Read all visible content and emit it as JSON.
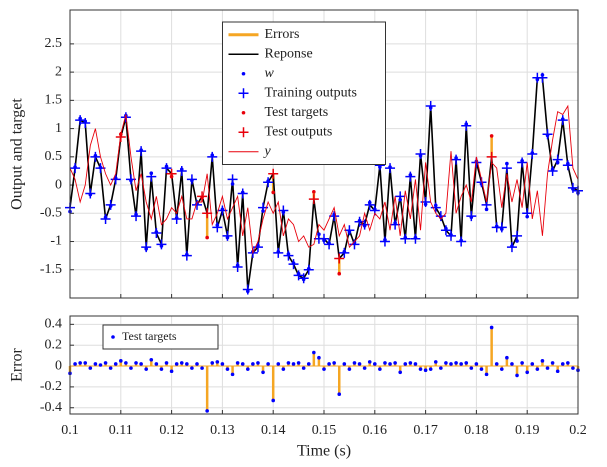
{
  "chart_data": [
    {
      "type": "line",
      "y_label": "Output and target",
      "legend": "upper center",
      "grid": true,
      "xtick_labels": false,
      "ylim": [
        -2,
        3.1
      ],
      "yticks": [
        -1.5,
        -1,
        -0.5,
        0,
        0.5,
        1,
        1.5,
        2,
        2.5
      ],
      "xlim": [
        0.1,
        0.2
      ],
      "xticks": [
        0.1,
        0.11,
        0.12,
        0.13,
        0.14,
        0.15,
        0.16,
        0.17,
        0.18,
        0.19,
        0.2
      ],
      "x": [
        0.1,
        0.101,
        0.102,
        0.103,
        0.104,
        0.105,
        0.106,
        0.107,
        0.108,
        0.109,
        0.11,
        0.111,
        0.112,
        0.113,
        0.114,
        0.115,
        0.116,
        0.117,
        0.118,
        0.119,
        0.12,
        0.121,
        0.122,
        0.123,
        0.124,
        0.125,
        0.126,
        0.127,
        0.128,
        0.129,
        0.13,
        0.131,
        0.132,
        0.133,
        0.134,
        0.135,
        0.136,
        0.137,
        0.138,
        0.139,
        0.14,
        0.141,
        0.142,
        0.143,
        0.144,
        0.145,
        0.146,
        0.147,
        0.148,
        0.149,
        0.15,
        0.151,
        0.152,
        0.153,
        0.154,
        0.155,
        0.156,
        0.157,
        0.158,
        0.159,
        0.16,
        0.161,
        0.162,
        0.163,
        0.164,
        0.165,
        0.166,
        0.167,
        0.168,
        0.169,
        0.17,
        0.171,
        0.172,
        0.173,
        0.174,
        0.175,
        0.176,
        0.177,
        0.178,
        0.179,
        0.18,
        0.181,
        0.182,
        0.183,
        0.184,
        0.185,
        0.186,
        0.187,
        0.188,
        0.189,
        0.19,
        0.191,
        0.192,
        0.193,
        0.194,
        0.195,
        0.196,
        0.197,
        0.198,
        0.199,
        0.2
      ],
      "series": [
        {
          "name": "Errors",
          "style": "stem",
          "base_series": 5,
          "color": "#f5a623",
          "x": [
            0.11,
            0.12,
            0.126,
            0.127,
            0.14,
            0.148,
            0.153,
            0.183
          ],
          "values": [
            0.05,
            -0.05,
            -0.02,
            -0.43,
            -0.33,
            0.13,
            -0.27,
            0.37
          ]
        },
        {
          "name": "Reponse",
          "style": "line",
          "width": 1.6,
          "color": "#000000",
          "values": [
            -0.4,
            0.3,
            1.15,
            1.1,
            -0.15,
            0.5,
            0.3,
            -0.6,
            -0.35,
            0.1,
            0.85,
            1.2,
            0.1,
            -0.55,
            0.6,
            -1.1,
            0.15,
            -0.85,
            -1.05,
            0.3,
            0.2,
            -0.6,
            0.25,
            -1.25,
            0.1,
            -0.35,
            -0.2,
            -0.5,
            0.5,
            -0.75,
            -0.45,
            -0.9,
            0.1,
            -1.45,
            -0.15,
            -1.85,
            -1.2,
            -1.1,
            -0.4,
            0.05,
            0.2,
            -1.2,
            -0.45,
            -1.25,
            -1.4,
            -1.6,
            -1.65,
            -1.5,
            -0.25,
            -0.95,
            -0.95,
            -1.05,
            -0.55,
            -1.3,
            -1.2,
            -0.8,
            -1.05,
            -0.65,
            -0.7,
            -0.35,
            -0.45,
            0.35,
            -1.0,
            0.3,
            -0.7,
            -0.2,
            -0.95,
            0.15,
            -0.95,
            0.55,
            -0.3,
            1.4,
            -0.4,
            -0.55,
            -0.8,
            -0.9,
            0.45,
            -1.0,
            1.05,
            -0.55,
            0.4,
            0.05,
            -0.35,
            0.5,
            -0.75,
            -0.75,
            0.3,
            -1.1,
            -0.9,
            0.4,
            -0.5,
            0.55,
            1.9,
            1.9,
            0.9,
            0.25,
            0.45,
            1.15,
            0.35,
            -0.05,
            -0.1
          ]
        },
        {
          "name": "w",
          "italic": true,
          "style": "dot",
          "color": "#0000ff",
          "values": [
            -0.47,
            0.32,
            1.18,
            1.13,
            -0.17,
            0.52,
            0.31,
            -0.57,
            -0.37,
            0.12,
            null,
            1.23,
            0.08,
            -0.52,
            0.62,
            -1.13,
            0.21,
            -0.83,
            -1.08,
            0.33,
            null,
            -0.58,
            0.28,
            -1.23,
            0.08,
            -0.33,
            null,
            null,
            0.53,
            -0.71,
            -0.43,
            -0.93,
            0.02,
            -1.42,
            -0.13,
            -1.88,
            -1.18,
            -1.07,
            -0.46,
            0.07,
            null,
            -1.18,
            -0.48,
            -1.22,
            -1.38,
            -1.57,
            -1.67,
            -1.48,
            null,
            -0.87,
            -0.98,
            -1.03,
            -0.52,
            null,
            -1.18,
            -0.83,
            -1.02,
            -0.63,
            -0.72,
            -0.31,
            -0.43,
            0.32,
            -0.97,
            0.32,
            -0.67,
            -0.26,
            -0.93,
            0.18,
            -0.93,
            0.52,
            -0.34,
            1.37,
            -0.36,
            -0.57,
            -0.77,
            -0.88,
            0.48,
            -0.98,
            1.08,
            -0.57,
            0.42,
            0.02,
            -0.43,
            null,
            -0.73,
            -0.78,
            0.38,
            -1.08,
            -0.99,
            0.43,
            -0.56,
            0.57,
            1.87,
            1.95,
            0.88,
            0.28,
            0.4,
            1.17,
            0.38,
            -0.07,
            -0.14
          ]
        },
        {
          "name": "Training outputs",
          "style": "plus",
          "color": "#0000ff",
          "values": [
            -0.4,
            0.3,
            1.15,
            1.1,
            -0.15,
            0.5,
            0.3,
            -0.6,
            -0.35,
            0.1,
            null,
            1.2,
            0.1,
            -0.55,
            0.6,
            -1.1,
            0.15,
            -0.85,
            -1.05,
            0.3,
            null,
            -0.6,
            0.25,
            -1.25,
            0.1,
            -0.35,
            null,
            null,
            0.5,
            -0.75,
            -0.45,
            -0.9,
            0.1,
            -1.45,
            -0.15,
            -1.85,
            -1.2,
            -1.1,
            -0.4,
            0.05,
            null,
            -1.2,
            -0.45,
            -1.25,
            -1.4,
            -1.6,
            -1.65,
            -1.5,
            null,
            -0.95,
            -0.95,
            -1.05,
            -0.55,
            null,
            -1.2,
            -0.8,
            -1.05,
            -0.65,
            -0.7,
            -0.35,
            -0.45,
            0.35,
            -1.0,
            0.3,
            -0.7,
            -0.2,
            -0.95,
            0.15,
            -0.95,
            0.55,
            -0.3,
            1.4,
            -0.4,
            -0.55,
            -0.8,
            -0.9,
            0.45,
            -1.0,
            1.05,
            -0.55,
            0.4,
            0.05,
            -0.35,
            null,
            -0.75,
            -0.75,
            0.3,
            -1.1,
            -0.9,
            0.4,
            -0.5,
            0.55,
            1.9,
            1.9,
            0.9,
            0.25,
            0.45,
            1.15,
            0.35,
            -0.05,
            -0.1
          ]
        },
        {
          "name": "Test targets",
          "style": "dot",
          "color": "#e8000b",
          "x": [
            0.11,
            0.12,
            0.126,
            0.127,
            0.14,
            0.148,
            0.153,
            0.183
          ],
          "values": [
            0.9,
            0.15,
            -0.22,
            -0.93,
            -0.13,
            -0.12,
            -1.57,
            0.87
          ]
        },
        {
          "name": "Test outputs",
          "style": "plus",
          "color": "#e8000b",
          "x": [
            0.11,
            0.12,
            0.126,
            0.127,
            0.14,
            0.148,
            0.153,
            0.183
          ],
          "values": [
            0.85,
            0.2,
            -0.2,
            -0.5,
            0.2,
            -0.25,
            -1.3,
            0.5
          ]
        },
        {
          "name": "y",
          "italic": true,
          "style": "line",
          "width": 0.9,
          "color": "#e8000b",
          "values": [
            0.3,
            0.1,
            -0.3,
            0.0,
            0.7,
            1.0,
            0.5,
            0.2,
            0.0,
            0.2,
            0.9,
            1.25,
            0.5,
            -0.1,
            0.2,
            -0.3,
            -0.6,
            -0.2,
            -0.7,
            -0.6,
            -0.4,
            -0.5,
            -0.2,
            -0.6,
            -0.6,
            -0.3,
            -0.3,
            0.2,
            -0.7,
            -0.5,
            -0.2,
            -0.6,
            -0.4,
            -0.2,
            -0.9,
            -0.4,
            -1.2,
            -1.0,
            -0.6,
            -0.3,
            -0.5,
            -0.3,
            -0.9,
            -0.6,
            -0.7,
            -1.0,
            -0.9,
            -1.1,
            -1.05,
            -0.7,
            -0.8,
            -0.6,
            -0.4,
            -0.9,
            -0.7,
            -1.1,
            -1.0,
            -0.9,
            -0.5,
            -0.8,
            -0.5,
            -0.6,
            -0.3,
            -0.8,
            -0.2,
            -0.9,
            -0.1,
            -0.6,
            0.1,
            -0.8,
            0.4,
            -0.3,
            -0.5,
            -0.6,
            -0.5,
            0.6,
            -0.5,
            -0.2,
            0.0,
            -0.3,
            0.5,
            0.1,
            -0.3,
            0.4,
            0.3,
            -0.4,
            0.2,
            -0.3,
            0.1,
            -0.4,
            0.4,
            -0.6,
            -0.1,
            -0.9,
            0.2,
            0.8,
            1.3,
            1.25,
            1.4,
            0.3,
            0.1
          ]
        }
      ]
    },
    {
      "type": "stem",
      "x_label": "Time (s)",
      "y_label": "Error",
      "legend": "upper left",
      "grid": true,
      "xtick_labels": true,
      "ylim": [
        -0.46,
        0.48
      ],
      "yticks": [
        -0.4,
        -0.2,
        0,
        0.2,
        0.4
      ],
      "xlim": [
        0.1,
        0.2
      ],
      "xticks": [
        0.1,
        0.11,
        0.12,
        0.13,
        0.14,
        0.15,
        0.16,
        0.17,
        0.18,
        0.19,
        0.2
      ],
      "x": [
        0.1,
        0.101,
        0.102,
        0.103,
        0.104,
        0.105,
        0.106,
        0.107,
        0.108,
        0.109,
        0.11,
        0.111,
        0.112,
        0.113,
        0.114,
        0.115,
        0.116,
        0.117,
        0.118,
        0.119,
        0.12,
        0.121,
        0.122,
        0.123,
        0.124,
        0.125,
        0.126,
        0.127,
        0.128,
        0.129,
        0.13,
        0.131,
        0.132,
        0.133,
        0.134,
        0.135,
        0.136,
        0.137,
        0.138,
        0.139,
        0.14,
        0.141,
        0.142,
        0.143,
        0.144,
        0.145,
        0.146,
        0.147,
        0.148,
        0.149,
        0.15,
        0.151,
        0.152,
        0.153,
        0.154,
        0.155,
        0.156,
        0.157,
        0.158,
        0.159,
        0.16,
        0.161,
        0.162,
        0.163,
        0.164,
        0.165,
        0.166,
        0.167,
        0.168,
        0.169,
        0.17,
        0.171,
        0.172,
        0.173,
        0.174,
        0.175,
        0.176,
        0.177,
        0.178,
        0.179,
        0.18,
        0.181,
        0.182,
        0.183,
        0.184,
        0.185,
        0.186,
        0.187,
        0.188,
        0.189,
        0.19,
        0.191,
        0.192,
        0.193,
        0.194,
        0.195,
        0.196,
        0.197,
        0.198,
        0.199,
        0.2
      ],
      "series": [
        {
          "name": "Test targets",
          "style": "stemdot",
          "color": "#0000ff",
          "stem_color": "#f5a623",
          "values": [
            -0.07,
            0.02,
            0.03,
            0.03,
            -0.02,
            0.02,
            0.01,
            0.03,
            -0.02,
            0.02,
            0.05,
            0.03,
            -0.02,
            0.03,
            0.02,
            -0.03,
            0.06,
            0.02,
            -0.03,
            0.03,
            -0.05,
            0.02,
            0.03,
            0.02,
            -0.02,
            0.02,
            -0.02,
            -0.43,
            0.03,
            0.04,
            0.02,
            -0.03,
            -0.08,
            0.03,
            0.02,
            -0.03,
            0.02,
            0.03,
            -0.06,
            0.02,
            -0.33,
            0.02,
            -0.03,
            0.03,
            0.02,
            0.03,
            -0.02,
            0.02,
            0.13,
            0.08,
            -0.03,
            0.02,
            0.03,
            -0.27,
            0.02,
            -0.03,
            0.03,
            0.02,
            -0.02,
            0.04,
            0.02,
            -0.03,
            0.03,
            0.02,
            0.03,
            -0.06,
            0.02,
            0.03,
            0.02,
            -0.03,
            -0.04,
            -0.03,
            0.04,
            -0.02,
            0.03,
            0.02,
            0.03,
            0.02,
            0.03,
            -0.02,
            0.02,
            -0.03,
            -0.08,
            0.37,
            0.02,
            -0.03,
            0.08,
            0.02,
            -0.09,
            0.03,
            -0.06,
            0.02,
            -0.03,
            0.05,
            -0.02,
            0.03,
            -0.05,
            0.02,
            0.03,
            -0.02,
            -0.04
          ]
        }
      ]
    }
  ]
}
